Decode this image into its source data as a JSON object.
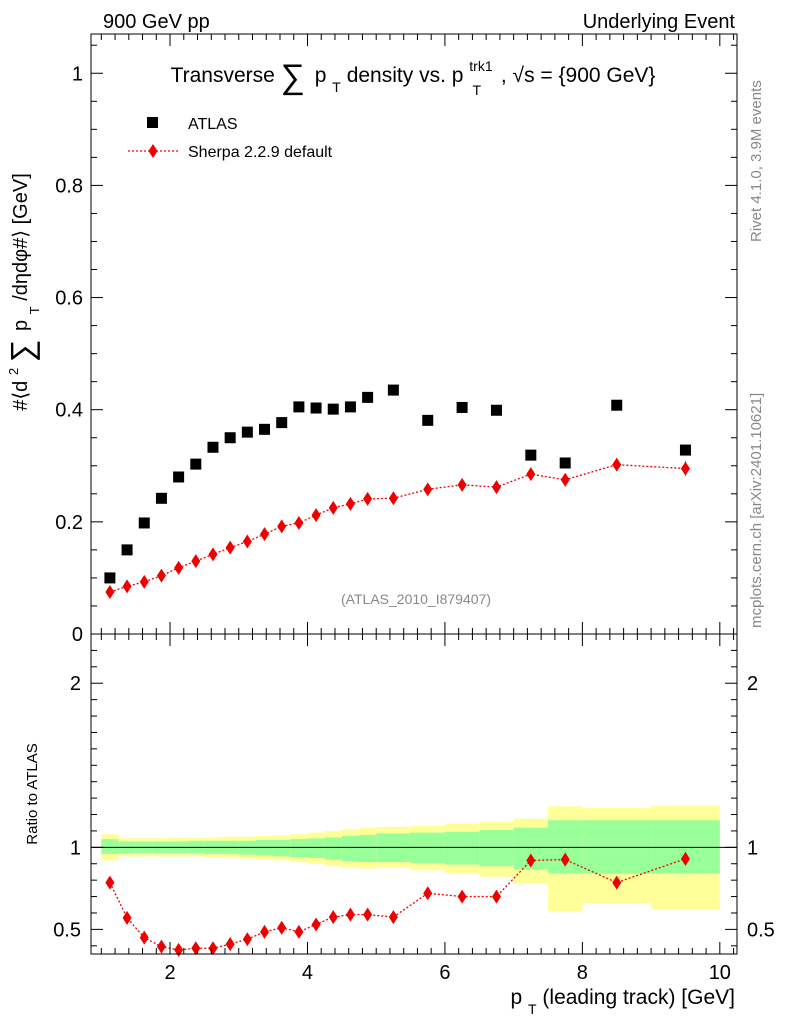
{
  "header": {
    "left": "900 GeV pp",
    "right": "Underlying Event"
  },
  "side": {
    "rivet": "Rivet 4.1.0,  3.9M events",
    "source": "mcplots.cern.ch [arXiv:2401.10621]"
  },
  "colors": {
    "data": "#000000",
    "mc": "#ee0000",
    "band_inner": "#99ff99",
    "band_outer": "#ffff99"
  },
  "chart_data": {
    "type": "scatter",
    "title": {
      "pre": "Transverse",
      "sum": "∑",
      "p": "p",
      "sub": "T",
      "mid": " density vs. p",
      "sup": "trk1",
      "sub2": "T",
      "post": ", √s = {900 GeV}"
    },
    "ylabel": {
      "pre": "#⟨d",
      "sup": "2",
      "sum": "∑",
      "mid": "p",
      "sub": "T",
      "post": "/dηdφ#⟩ [GeV]"
    },
    "ratio_ylabel": "Ratio to ATLAS",
    "xlabel": {
      "p": "p",
      "sub": "T",
      "rest": " (leading track) [GeV]"
    },
    "analysis_id": "(ATLAS_2010_I879407)",
    "xlim": [
      0.85,
      10.25
    ],
    "ylim": [
      0,
      1.07
    ],
    "ratio_ylim": [
      0.35,
      2.3
    ],
    "x_ticks": [
      2,
      4,
      6,
      8,
      10
    ],
    "y_ticks": [
      0,
      0.2,
      0.4,
      0.6,
      0.8,
      1
    ],
    "y_tick_labels": [
      "0",
      "0.2",
      "0.4",
      "0.6",
      "0.8",
      "1"
    ],
    "ratio_ticks": [
      0.5,
      1,
      2
    ],
    "ratio_tick_labels": [
      "0.5",
      "1",
      "2"
    ],
    "legend": [
      {
        "label": "ATLAS",
        "marker": "square"
      },
      {
        "label": "Sherpa 2.2.9 default",
        "marker": "diamond"
      }
    ],
    "edges": [
      1.0,
      1.25,
      1.5,
      1.75,
      2.0,
      2.25,
      2.5,
      2.75,
      3.0,
      3.25,
      3.5,
      3.75,
      4.0,
      4.25,
      4.5,
      4.75,
      5.0,
      5.5,
      6.0,
      6.5,
      7.0,
      7.5,
      8.0,
      9.0,
      10.0
    ],
    "x": [
      1.125,
      1.375,
      1.625,
      1.875,
      2.125,
      2.375,
      2.625,
      2.875,
      3.125,
      3.375,
      3.625,
      3.875,
      4.125,
      4.375,
      4.625,
      4.875,
      5.25,
      5.75,
      6.25,
      6.75,
      7.25,
      7.75,
      8.5,
      9.5
    ],
    "series": [
      {
        "name": "ATLAS",
        "values": [
          0.1,
          0.15,
          0.198,
          0.242,
          0.28,
          0.303,
          0.333,
          0.35,
          0.36,
          0.365,
          0.377,
          0.405,
          0.403,
          0.401,
          0.405,
          0.422,
          0.435,
          0.381,
          0.404,
          0.399,
          0.319,
          0.305,
          0.408,
          0.328
        ]
      },
      {
        "name": "Sherpa 2.2.9 default",
        "values": [
          0.075,
          0.085,
          0.093,
          0.104,
          0.118,
          0.13,
          0.142,
          0.154,
          0.165,
          0.178,
          0.192,
          0.198,
          0.212,
          0.225,
          0.232,
          0.241,
          0.242,
          0.258,
          0.266,
          0.262,
          0.285,
          0.275,
          0.302,
          0.295
        ],
        "errors": [
          0.004,
          0.003,
          0.003,
          0.003,
          0.003,
          0.003,
          0.003,
          0.003,
          0.003,
          0.003,
          0.003,
          0.003,
          0.003,
          0.003,
          0.004,
          0.004,
          0.004,
          0.005,
          0.006,
          0.007,
          0.009,
          0.011,
          0.01,
          0.013
        ]
      }
    ],
    "ratio": [
      0.785,
      0.57,
      0.45,
      0.395,
      0.375,
      0.385,
      0.385,
      0.41,
      0.44,
      0.485,
      0.51,
      0.485,
      0.53,
      0.575,
      0.59,
      0.59,
      0.575,
      0.72,
      0.7,
      0.7,
      0.92,
      0.925,
      0.785,
      0.93
    ],
    "ratio_errors": [
      0.02,
      0.02,
      0.015,
      0.015,
      0.015,
      0.015,
      0.015,
      0.015,
      0.015,
      0.015,
      0.015,
      0.015,
      0.015,
      0.015,
      0.015,
      0.015,
      0.015,
      0.02,
      0.02,
      0.02,
      0.035,
      0.035,
      0.03,
      0.04
    ],
    "band_inner": {
      "lo": [
        0.96,
        0.965,
        0.965,
        0.965,
        0.965,
        0.965,
        0.96,
        0.96,
        0.955,
        0.95,
        0.945,
        0.94,
        0.935,
        0.925,
        0.915,
        0.91,
        0.91,
        0.905,
        0.895,
        0.885,
        0.865,
        0.84,
        0.84,
        0.84
      ],
      "hi": [
        1.05,
        1.035,
        1.035,
        1.035,
        1.035,
        1.04,
        1.04,
        1.04,
        1.04,
        1.045,
        1.045,
        1.05,
        1.055,
        1.06,
        1.07,
        1.075,
        1.085,
        1.09,
        1.095,
        1.105,
        1.12,
        1.165,
        1.165,
        1.165
      ]
    },
    "band_outer": {
      "lo": [
        0.92,
        0.945,
        0.945,
        0.945,
        0.945,
        0.945,
        0.94,
        0.935,
        0.93,
        0.925,
        0.92,
        0.91,
        0.9,
        0.885,
        0.875,
        0.87,
        0.875,
        0.86,
        0.84,
        0.82,
        0.78,
        0.61,
        0.66,
        0.62
      ],
      "hi": [
        1.08,
        1.055,
        1.055,
        1.055,
        1.06,
        1.06,
        1.06,
        1.065,
        1.065,
        1.07,
        1.075,
        1.08,
        1.09,
        1.1,
        1.11,
        1.12,
        1.125,
        1.13,
        1.145,
        1.155,
        1.175,
        1.25,
        1.24,
        1.255
      ]
    }
  }
}
